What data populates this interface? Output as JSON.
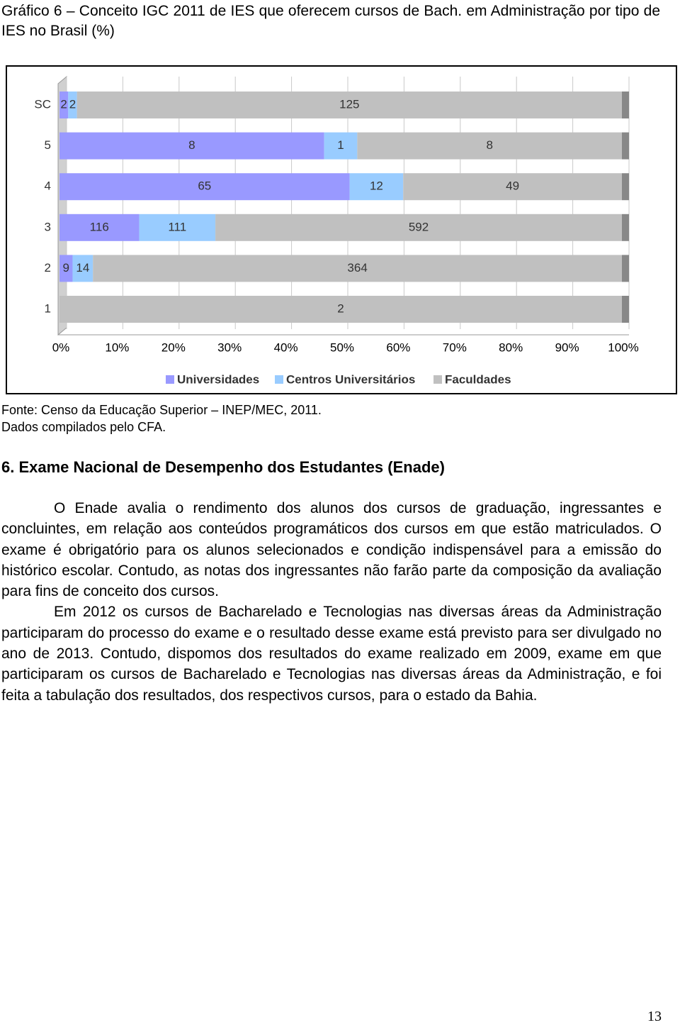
{
  "caption": {
    "title": "Gráfico 6 – Conceito IGC 2011 de IES que oferecem cursos de Bach. em Administração por tipo de IES no Brasil (%)"
  },
  "chart_data": {
    "type": "bar",
    "orientation": "horizontal",
    "stacked": "percent",
    "categories": [
      "SC",
      "5",
      "4",
      "3",
      "2",
      "1"
    ],
    "series": [
      {
        "name": "Universidades",
        "color": "#9999ff",
        "values": [
          2,
          8,
          65,
          116,
          9,
          0
        ]
      },
      {
        "name": "Centros Universitários",
        "color": "#99ccff",
        "values": [
          2,
          1,
          12,
          111,
          14,
          null
        ]
      },
      {
        "name": "Faculdades",
        "color": "#c0c0c0",
        "values": [
          125,
          8,
          49,
          592,
          364,
          2
        ]
      }
    ],
    "xlim": [
      0,
      100
    ],
    "xticks": [
      {
        "value": 0,
        "label": "0%"
      },
      {
        "value": 10,
        "label": "10%"
      },
      {
        "value": 20,
        "label": "20%"
      },
      {
        "value": 30,
        "label": "30%"
      },
      {
        "value": 40,
        "label": "40%"
      },
      {
        "value": 50,
        "label": "50%"
      },
      {
        "value": 60,
        "label": "60%"
      },
      {
        "value": 70,
        "label": "70%"
      },
      {
        "value": 80,
        "label": "80%"
      },
      {
        "value": 90,
        "label": "90%"
      },
      {
        "value": 100,
        "label": "100%"
      }
    ],
    "grid": true,
    "legend": "bottom"
  },
  "source": [
    "Fonte: Censo da Educação Superior – INEP/MEC, 2011.",
    "Dados compilados pelo CFA."
  ],
  "section": {
    "heading": "6. Exame Nacional de Desempenho dos Estudantes (Enade)",
    "paragraphs": [
      "O Enade avalia o rendimento dos alunos dos cursos de graduação, ingressantes e concluintes, em relação aos conteúdos programáticos dos cursos em que estão matriculados. O exame é obrigatório para os alunos selecionados e condição indispensável para a emissão do histórico escolar. Contudo, as notas dos ingressantes não farão parte da composição da avaliação para fins de conceito dos cursos.",
      "Em 2012 os cursos de Bacharelado e Tecnologias nas diversas áreas da Administração participaram do processo do exame e o resultado desse exame está previsto para ser divulgado no ano de 2013. Contudo, dispomos dos resultados do exame realizado em 2009, exame em que participaram os cursos de Bacharelado e Tecnologias nas diversas áreas da Administração, e foi feita a tabulação dos resultados, dos respectivos cursos, para o estado da Bahia."
    ]
  },
  "page_number": "13"
}
